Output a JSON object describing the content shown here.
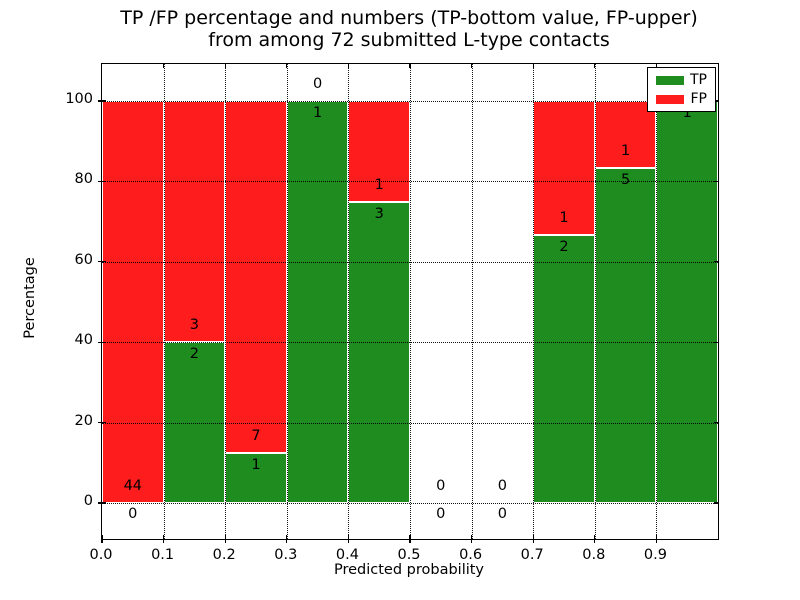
{
  "chart_data": {
    "type": "bar",
    "stacked": true,
    "title_line1": "TP /FP percentage and numbers (TP-bottom value, FP-upper)",
    "title_line2": "from among 72 submitted L-type contacts",
    "xlabel": "Predicted probability",
    "ylabel": "Percentage",
    "x_ticks": [
      "0.0",
      "0.1",
      "0.2",
      "0.3",
      "0.4",
      "0.5",
      "0.6",
      "0.7",
      "0.8",
      "0.9"
    ],
    "y_ticks": [
      0,
      20,
      40,
      60,
      80,
      100
    ],
    "xlim": [
      0.0,
      1.0
    ],
    "ylim": [
      -9,
      109
    ],
    "bin_width": 0.1,
    "grid": true,
    "total_contacts": 72,
    "legend": {
      "position": "upper right",
      "entries": [
        {
          "label": "TP",
          "color": "#1e8c1e"
        },
        {
          "label": "FP",
          "color": "#ff1c1c"
        }
      ]
    },
    "bins": [
      {
        "range": [
          0.0,
          0.1
        ],
        "tp": 0,
        "fp": 44,
        "tp_pct": 0,
        "fp_pct": 100
      },
      {
        "range": [
          0.1,
          0.2
        ],
        "tp": 2,
        "fp": 3,
        "tp_pct": 40,
        "fp_pct": 60
      },
      {
        "range": [
          0.2,
          0.3
        ],
        "tp": 1,
        "fp": 7,
        "tp_pct": 12.5,
        "fp_pct": 87.5
      },
      {
        "range": [
          0.3,
          0.4
        ],
        "tp": 1,
        "fp": 0,
        "tp_pct": 100,
        "fp_pct": 0
      },
      {
        "range": [
          0.4,
          0.5
        ],
        "tp": 3,
        "fp": 1,
        "tp_pct": 75,
        "fp_pct": 25
      },
      {
        "range": [
          0.5,
          0.6
        ],
        "tp": 0,
        "fp": 0,
        "tp_pct": 0,
        "fp_pct": 0
      },
      {
        "range": [
          0.6,
          0.7
        ],
        "tp": 0,
        "fp": 0,
        "tp_pct": 0,
        "fp_pct": 0
      },
      {
        "range": [
          0.7,
          0.8
        ],
        "tp": 2,
        "fp": 1,
        "tp_pct": 66.67,
        "fp_pct": 33.33
      },
      {
        "range": [
          0.8,
          0.9
        ],
        "tp": 5,
        "fp": 1,
        "tp_pct": 83.33,
        "fp_pct": 16.67
      },
      {
        "range": [
          0.9,
          1.0
        ],
        "tp": 1,
        "fp": 0,
        "tp_pct": 100,
        "fp_pct": 0
      }
    ],
    "colors": {
      "tp": "#1e8c1e",
      "fp": "#ff1c1c",
      "grid": "#000000",
      "text": "#000000",
      "background": "#ffffff"
    }
  }
}
